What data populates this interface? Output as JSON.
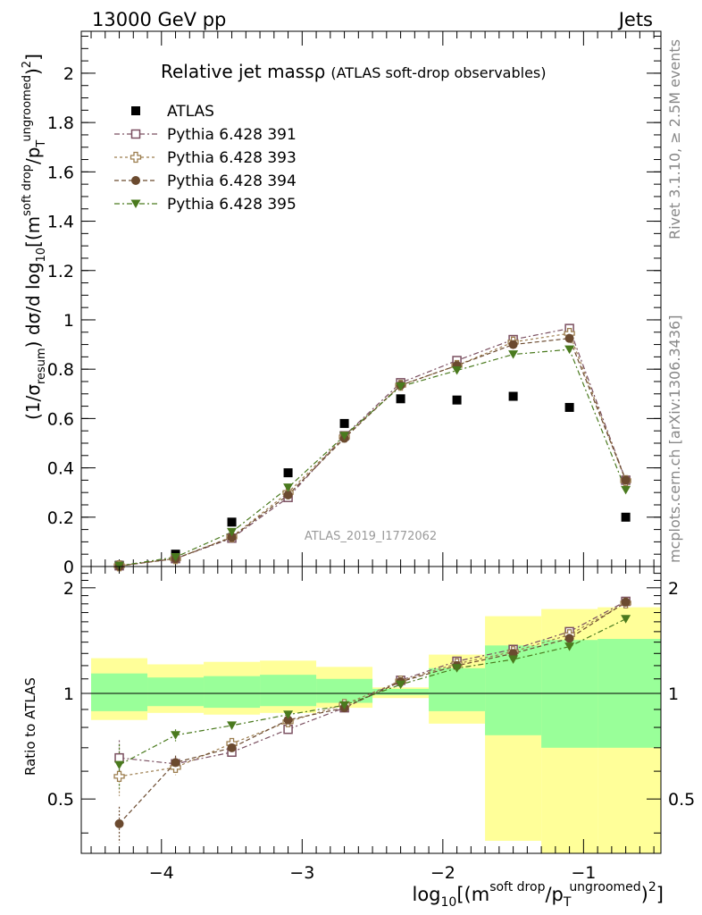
{
  "header": {
    "left": "13000 GeV pp",
    "right": "Jets"
  },
  "side_text": {
    "rivet": "Rivet 3.1.10, ≥ 2.5M events",
    "mcplots": "mcplots.cern.ch [arXiv:1306.3436]"
  },
  "chart_data": [
    {
      "type": "scatter",
      "title": "Relative jet massρ",
      "subtitle": "(ATLAS soft-drop observables)",
      "watermark": "ATLAS_2019_I1772062",
      "ylabel": {
        "prefix": "(1/σ",
        "prefix_sub": "resum",
        "mid": ") dσ/d log",
        "mid_sub": "10",
        "post": "[(m",
        "sup1": "soft drop",
        "post2": "/p",
        "sub2": "T",
        "sup2": "ungroomed",
        "post3": ")",
        "sup3": "2",
        "post4": "]"
      },
      "xlim": [
        -4.57,
        -0.45
      ],
      "ylim": [
        0,
        2.17
      ],
      "yticks": [
        {
          "v": 0,
          "label": "0"
        },
        {
          "v": 0.2,
          "label": "0.2"
        },
        {
          "v": 0.4,
          "label": "0.4"
        },
        {
          "v": 0.6,
          "label": "0.6"
        },
        {
          "v": 0.8,
          "label": "0.8"
        },
        {
          "v": 1,
          "label": "1"
        },
        {
          "v": 1.2,
          "label": "1.2"
        },
        {
          "v": 1.4,
          "label": "1.4"
        },
        {
          "v": 1.6,
          "label": "1.6"
        },
        {
          "v": 1.8,
          "label": "1.8"
        },
        {
          "v": 2,
          "label": "2"
        }
      ],
      "legend_position": "top-left",
      "series": [
        {
          "name": "ATLAS",
          "marker": "filled-square",
          "color": "#000000",
          "x": [
            -4.3,
            -3.9,
            -3.5,
            -3.1,
            -2.7,
            -2.3,
            -1.9,
            -1.5,
            -1.1,
            -0.7
          ],
          "y": [
            0.005,
            0.05,
            0.18,
            0.38,
            0.58,
            0.68,
            0.675,
            0.69,
            0.645,
            0.2
          ]
        },
        {
          "name": "Pythia 6.428 391",
          "marker": "open-square",
          "color": "#7a4f60",
          "dash": "6,3,2,3",
          "x": [
            -4.3,
            -3.9,
            -3.5,
            -3.1,
            -2.7,
            -2.3,
            -1.9,
            -1.5,
            -1.1,
            -0.7
          ],
          "y": [
            0.003,
            0.032,
            0.115,
            0.28,
            0.53,
            0.745,
            0.835,
            0.92,
            0.965,
            0.35
          ]
        },
        {
          "name": "Pythia 6.428 393",
          "marker": "open-cross",
          "color": "#9c7d4e",
          "dash": "3,3",
          "x": [
            -4.3,
            -3.9,
            -3.5,
            -3.1,
            -2.7,
            -2.3,
            -1.9,
            -1.5,
            -1.1,
            -0.7
          ],
          "y": [
            0.003,
            0.032,
            0.12,
            0.3,
            0.525,
            0.735,
            0.815,
            0.91,
            0.945,
            0.348
          ]
        },
        {
          "name": "Pythia 6.428 394",
          "marker": "filled-circle",
          "color": "#6b4a2f",
          "dash": "5,3",
          "x": [
            -4.3,
            -3.9,
            -3.5,
            -3.1,
            -2.7,
            -2.3,
            -1.9,
            -1.5,
            -1.1,
            -0.7
          ],
          "y": [
            0.002,
            0.032,
            0.118,
            0.29,
            0.52,
            0.735,
            0.815,
            0.9,
            0.925,
            0.35
          ]
        },
        {
          "name": "Pythia 6.428 395",
          "marker": "filled-triangle-down",
          "color": "#4a7a1e",
          "dash": "6,3,2,3",
          "x": [
            -4.3,
            -3.9,
            -3.5,
            -3.1,
            -2.7,
            -2.3,
            -1.9,
            -1.5,
            -1.1,
            -0.7
          ],
          "y": [
            0.003,
            0.038,
            0.14,
            0.32,
            0.53,
            0.73,
            0.795,
            0.86,
            0.88,
            0.31
          ]
        }
      ]
    },
    {
      "type": "scatter",
      "ylabel": "Ratio to ATLAS",
      "xlabel": {
        "pre": "log",
        "sub": "10",
        "post": "[(m",
        "sup1": "soft drop",
        "post2": "/p",
        "sub2": "T",
        "sup2": "ungroomed",
        "post3": ")",
        "sup3": "2",
        "post4": "]"
      },
      "xlim": [
        -4.57,
        -0.45
      ],
      "ylim": [
        0.35,
        2.3
      ],
      "xticks": [
        {
          "v": -4,
          "label": "−4"
        },
        {
          "v": -3,
          "label": "−3"
        },
        {
          "v": -2,
          "label": "−2"
        },
        {
          "v": -1,
          "label": "−1"
        }
      ],
      "yticks": [
        {
          "v": 0.5,
          "label": "0.5"
        },
        {
          "v": 1,
          "label": "1"
        },
        {
          "v": 2,
          "label": "2"
        }
      ],
      "reference_line": 1,
      "bands": {
        "x_edges": [
          -4.5,
          -4.1,
          -3.7,
          -3.3,
          -2.9,
          -2.5,
          -2.1,
          -1.7,
          -1.3,
          -0.9,
          -0.45
        ],
        "yellow_low": [
          0.84,
          0.88,
          0.87,
          0.88,
          0.91,
          0.97,
          0.82,
          0.38,
          0.35,
          0.35
        ],
        "yellow_high": [
          1.26,
          1.21,
          1.23,
          1.24,
          1.19,
          1.04,
          1.29,
          1.66,
          1.74,
          1.76
        ],
        "green_low": [
          0.89,
          0.92,
          0.91,
          0.92,
          0.94,
          0.99,
          0.89,
          0.76,
          0.7,
          0.7
        ],
        "green_high": [
          1.14,
          1.11,
          1.12,
          1.13,
          1.1,
          1.03,
          1.18,
          1.37,
          1.42,
          1.43
        ]
      },
      "series": [
        {
          "name": "Pythia 6.428 391",
          "marker": "open-square",
          "color": "#7a4f60",
          "dash": "6,3,2,3",
          "x": [
            -4.3,
            -3.9,
            -3.5,
            -3.1,
            -2.7,
            -2.3,
            -1.9,
            -1.5,
            -1.1,
            -0.7
          ],
          "y": [
            0.655,
            0.63,
            0.68,
            0.79,
            0.91,
            1.09,
            1.235,
            1.335,
            1.5,
            1.83
          ],
          "err": [
            0.08,
            0.03,
            0.02,
            0.01,
            0.01,
            0.01,
            0.01,
            0.01,
            0.01,
            0.01
          ]
        },
        {
          "name": "Pythia 6.428 393",
          "marker": "open-cross",
          "color": "#9c7d4e",
          "dash": "3,3",
          "x": [
            -4.3,
            -3.9,
            -3.5,
            -3.1,
            -2.7,
            -2.3,
            -1.9,
            -1.5,
            -1.1,
            -0.7
          ],
          "y": [
            0.58,
            0.615,
            0.72,
            0.83,
            0.93,
            1.085,
            1.215,
            1.315,
            1.47,
            1.81
          ],
          "err": [
            0.07,
            0.03,
            0.02,
            0.01,
            0.01,
            0.01,
            0.01,
            0.01,
            0.01,
            0.01
          ]
        },
        {
          "name": "Pythia 6.428 394",
          "marker": "filled-circle",
          "color": "#6b4a2f",
          "dash": "5,3",
          "x": [
            -4.3,
            -3.9,
            -3.5,
            -3.1,
            -2.7,
            -2.3,
            -1.9,
            -1.5,
            -1.1,
            -0.7
          ],
          "y": [
            0.425,
            0.635,
            0.7,
            0.84,
            0.91,
            1.08,
            1.2,
            1.3,
            1.435,
            1.82
          ],
          "err": [
            0.05,
            0.03,
            0.02,
            0.01,
            0.01,
            0.01,
            0.01,
            0.01,
            0.01,
            0.01
          ]
        },
        {
          "name": "Pythia 6.428 395",
          "marker": "filled-triangle-down",
          "color": "#4a7a1e",
          "dash": "6,3,2,3",
          "x": [
            -4.3,
            -3.9,
            -3.5,
            -3.1,
            -2.7,
            -2.3,
            -1.9,
            -1.5,
            -1.1,
            -0.7
          ],
          "y": [
            0.625,
            0.76,
            0.81,
            0.87,
            0.925,
            1.06,
            1.18,
            1.25,
            1.36,
            1.63
          ],
          "err": [
            0.09,
            0.03,
            0.02,
            0.01,
            0.01,
            0.01,
            0.01,
            0.01,
            0.01,
            0.01
          ]
        }
      ]
    }
  ]
}
